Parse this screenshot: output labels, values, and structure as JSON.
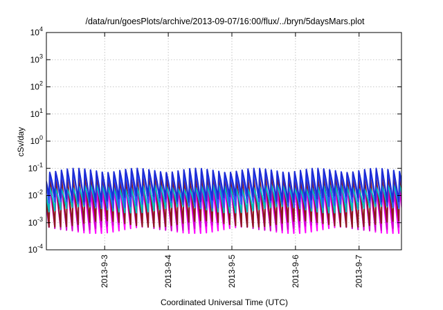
{
  "chart_data": {
    "type": "line",
    "title": "/data/run/goesPlots/archive/2013-09-07/16:00/flux/../bryn/5daysMars.plot",
    "xlabel": "Coordinated Universal Time (UTC)",
    "ylabel": "cSv/day",
    "y_scale": "log",
    "ylim": [
      0.0001,
      10000
    ],
    "y_ticks": [
      {
        "value": 0.0001,
        "base": "10",
        "exp": "-4"
      },
      {
        "value": 0.001,
        "base": "10",
        "exp": "-3"
      },
      {
        "value": 0.01,
        "base": "10",
        "exp": "-2"
      },
      {
        "value": 0.1,
        "base": "10",
        "exp": "-1"
      },
      {
        "value": 1,
        "base": "10",
        "exp": "0"
      },
      {
        "value": 10,
        "base": "10",
        "exp": "1"
      },
      {
        "value": 100,
        "base": "10",
        "exp": "2"
      },
      {
        "value": 1000,
        "base": "10",
        "exp": "3"
      },
      {
        "value": 10000,
        "base": "10",
        "exp": "4"
      }
    ],
    "x_range": [
      "2013-09-02T02:00",
      "2013-09-07T16:00"
    ],
    "x_ticks": [
      "2013-9-3",
      "2013-9-4",
      "2013-9-5",
      "2013-9-6",
      "2013-9-7"
    ],
    "grid": true,
    "legend": "none",
    "series_colors": [
      "#ff00ff",
      "#cc00cc",
      "#8b1a1a",
      "#00bfbf",
      "#2f4fff",
      "#1c2cd6"
    ],
    "pattern_note": "sawtooth cycle approx. every 2.2 hours",
    "series": [
      {
        "color": "#ff00ff",
        "peak": 0.02,
        "trough": 0.0007
      },
      {
        "color": "#cc00cc",
        "peak": 0.03,
        "trough": 0.0009
      },
      {
        "color": "#8b1a1a",
        "peak": 0.06,
        "trough": 0.0012
      },
      {
        "color": "#00bfbf",
        "peak": 0.025,
        "trough": 0.004
      },
      {
        "color": "#2f4fff",
        "peak": 0.09,
        "trough": 0.006
      },
      {
        "color": "#1c2cd6",
        "peak": 0.1,
        "trough": 0.01
      }
    ]
  }
}
